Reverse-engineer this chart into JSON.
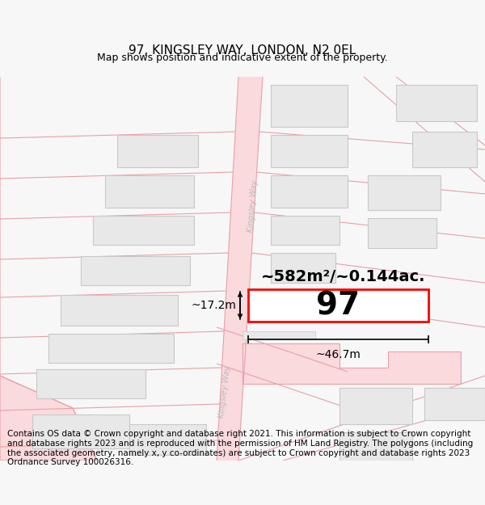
{
  "title": "97, KINGSLEY WAY, LONDON, N2 0EL",
  "subtitle": "Map shows position and indicative extent of the property.",
  "footer": "Contains OS data © Crown copyright and database right 2021. This information is subject to Crown copyright and database rights 2023 and is reproduced with the permission of HM Land Registry. The polygons (including the associated geometry, namely x, y co-ordinates) are subject to Crown copyright and database rights 2023 Ordnance Survey 100026316.",
  "background_color": "#f7f7f7",
  "map_background": "#ffffff",
  "street_color": "#fadadd",
  "street_border_color": "#e8a0a8",
  "building_fill": "#e8e8e8",
  "building_edge": "#c8c8c8",
  "highlight_color": "#ff0000",
  "highlight_fill": "#ffffff",
  "text_color": "#000000",
  "road_label_upper": "Kingsley Way",
  "road_label_lower": "Kingsley Way",
  "area_label": "~582m²/~0.144ac.",
  "width_label": "~46.7m",
  "height_label": "~17.2m",
  "property_number": "97",
  "title_fontsize": 11,
  "subtitle_fontsize": 9,
  "footer_fontsize": 7.5,
  "dim_arrow_fontsize": 10,
  "area_fontsize": 14,
  "prop_num_fontsize": 28
}
